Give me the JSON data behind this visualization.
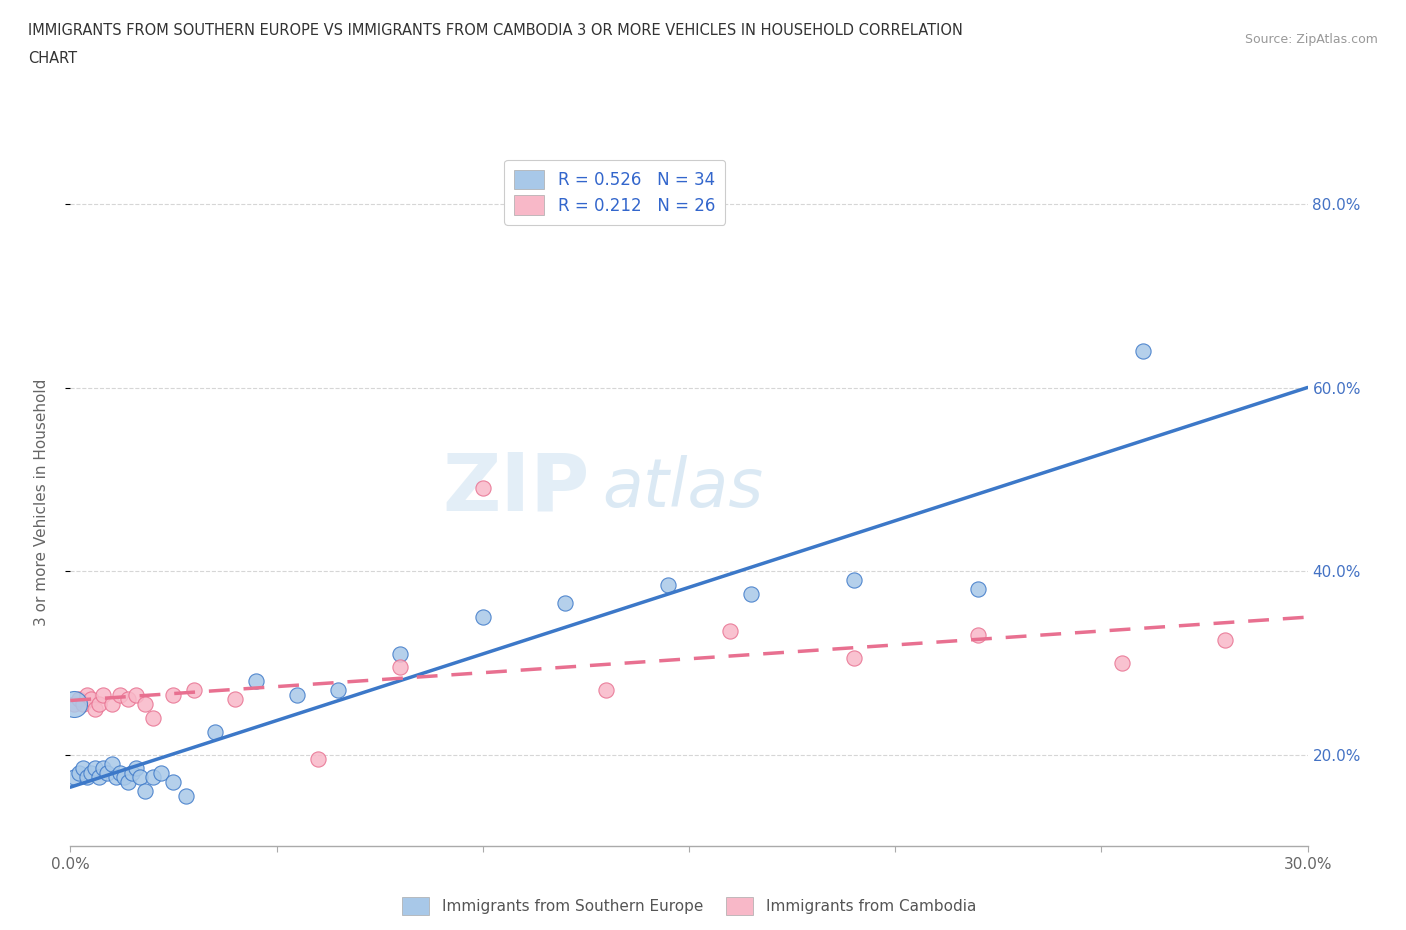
{
  "title_line1": "IMMIGRANTS FROM SOUTHERN EUROPE VS IMMIGRANTS FROM CAMBODIA 3 OR MORE VEHICLES IN HOUSEHOLD CORRELATION",
  "title_line2": "CHART",
  "source": "Source: ZipAtlas.com",
  "ylabel": "3 or more Vehicles in Household",
  "xlim": [
    0.0,
    0.3
  ],
  "ylim": [
    0.1,
    0.85
  ],
  "xticks": [
    0.0,
    0.05,
    0.1,
    0.15,
    0.2,
    0.25,
    0.3
  ],
  "xticklabels": [
    "0.0%",
    "",
    "",
    "",
    "",
    "",
    "30.0%"
  ],
  "yticks": [
    0.2,
    0.4,
    0.6,
    0.8
  ],
  "yticklabels": [
    "20.0%",
    "40.0%",
    "60.0%",
    "80.0%"
  ],
  "legend_label1": "Immigrants from Southern Europe",
  "legend_label2": "Immigrants from Cambodia",
  "R1": 0.526,
  "N1": 34,
  "R2": 0.212,
  "N2": 26,
  "blue_color": "#a8c8e8",
  "blue_line_color": "#3c78c8",
  "pink_color": "#f8b8c8",
  "pink_line_color": "#e87090",
  "blue_scatter_x": [
    0.001,
    0.002,
    0.003,
    0.004,
    0.005,
    0.006,
    0.007,
    0.008,
    0.009,
    0.01,
    0.011,
    0.012,
    0.013,
    0.014,
    0.015,
    0.016,
    0.017,
    0.018,
    0.02,
    0.022,
    0.025,
    0.028,
    0.035,
    0.045,
    0.055,
    0.065,
    0.08,
    0.1,
    0.12,
    0.145,
    0.165,
    0.19,
    0.22,
    0.26
  ],
  "blue_scatter_y": [
    0.175,
    0.18,
    0.185,
    0.175,
    0.18,
    0.185,
    0.175,
    0.185,
    0.18,
    0.19,
    0.175,
    0.18,
    0.175,
    0.17,
    0.18,
    0.185,
    0.175,
    0.16,
    0.175,
    0.18,
    0.17,
    0.155,
    0.225,
    0.28,
    0.265,
    0.27,
    0.31,
    0.35,
    0.365,
    0.385,
    0.375,
    0.39,
    0.38,
    0.64
  ],
  "pink_scatter_x": [
    0.001,
    0.002,
    0.003,
    0.004,
    0.005,
    0.006,
    0.007,
    0.008,
    0.01,
    0.012,
    0.014,
    0.016,
    0.018,
    0.02,
    0.025,
    0.03,
    0.04,
    0.06,
    0.08,
    0.1,
    0.13,
    0.16,
    0.19,
    0.22,
    0.255,
    0.28
  ],
  "pink_scatter_y": [
    0.255,
    0.26,
    0.255,
    0.265,
    0.26,
    0.25,
    0.255,
    0.265,
    0.255,
    0.265,
    0.26,
    0.265,
    0.255,
    0.24,
    0.265,
    0.27,
    0.26,
    0.195,
    0.295,
    0.49,
    0.27,
    0.335,
    0.305,
    0.33,
    0.3,
    0.325
  ],
  "watermark_zip": "ZIP",
  "watermark_atlas": "atlas",
  "background_color": "#ffffff",
  "grid_color": "#cccccc"
}
